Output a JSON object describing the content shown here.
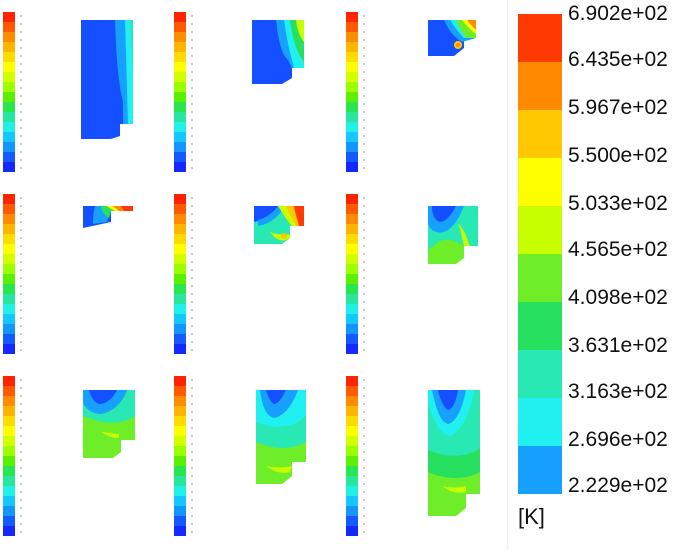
{
  "legend": {
    "unit": "[K]",
    "ticks": [
      "6.902e+02",
      "6.435e+02",
      "5.967e+02",
      "5.500e+02",
      "5.033e+02",
      "4.565e+02",
      "4.098e+02",
      "3.631e+02",
      "3.163e+02",
      "2.696e+02",
      "2.229e+02"
    ],
    "colors_top_to_bottom": [
      "#ff3a00",
      "#ff8a00",
      "#ffc800",
      "#ffff00",
      "#c8ff00",
      "#6eee28",
      "#28e060",
      "#28e8b4",
      "#20f0f0",
      "#18a0ff",
      "#1450ff"
    ]
  },
  "mini_scale_colors": [
    "#ff2400",
    "#ff5a00",
    "#ff8c00",
    "#ffb400",
    "#ffdc00",
    "#ffff00",
    "#d2ff00",
    "#9cff00",
    "#5af000",
    "#28e650",
    "#28e6a0",
    "#20f0e6",
    "#14c8ff",
    "#1496ff",
    "#145aff",
    "#1428ff"
  ],
  "panels": [
    {
      "id": "t1"
    },
    {
      "id": "t2"
    },
    {
      "id": "t3"
    },
    {
      "id": "t4"
    },
    {
      "id": "t5"
    },
    {
      "id": "t6"
    },
    {
      "id": "t7"
    },
    {
      "id": "t8"
    },
    {
      "id": "t9"
    }
  ]
}
